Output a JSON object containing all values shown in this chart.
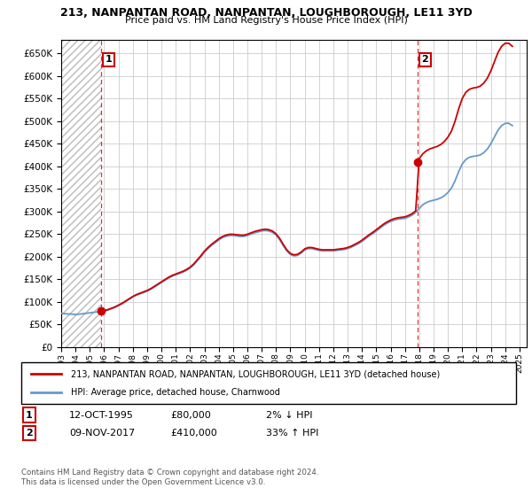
{
  "title": "213, NANPANTAN ROAD, NANPANTAN, LOUGHBOROUGH, LE11 3YD",
  "subtitle": "Price paid vs. HM Land Registry's House Price Index (HPI)",
  "ylabel_ticks": [
    0,
    50000,
    100000,
    150000,
    200000,
    250000,
    300000,
    350000,
    400000,
    450000,
    500000,
    550000,
    600000,
    650000
  ],
  "ylim": [
    0,
    680000
  ],
  "xlim_start": 1993.0,
  "xlim_end": 2025.5,
  "sale1_date": 1995.78,
  "sale1_price": 80000,
  "sale2_date": 2017.86,
  "sale2_price": 410000,
  "legend_label1": "213, NANPANTAN ROAD, NANPANTAN, LOUGHBOROUGH, LE11 3YD (detached house)",
  "legend_label2": "HPI: Average price, detached house, Charnwood",
  "note1_date": "12-OCT-1995",
  "note1_price": "£80,000",
  "note1_hpi": "2% ↓ HPI",
  "note2_date": "09-NOV-2017",
  "note2_price": "£410,000",
  "note2_hpi": "33% ↑ HPI",
  "copyright": "Contains HM Land Registry data © Crown copyright and database right 2024.\nThis data is licensed under the Open Government Licence v3.0.",
  "red_color": "#cc0000",
  "blue_color": "#6699cc",
  "grid_color": "#cccccc",
  "bg_color": "#ffffff",
  "hpi_data_years": [
    1993.0,
    1993.25,
    1993.5,
    1993.75,
    1994.0,
    1994.25,
    1994.5,
    1994.75,
    1995.0,
    1995.25,
    1995.5,
    1995.75,
    1996.0,
    1996.25,
    1996.5,
    1996.75,
    1997.0,
    1997.25,
    1997.5,
    1997.75,
    1998.0,
    1998.25,
    1998.5,
    1998.75,
    1999.0,
    1999.25,
    1999.5,
    1999.75,
    2000.0,
    2000.25,
    2000.5,
    2000.75,
    2001.0,
    2001.25,
    2001.5,
    2001.75,
    2002.0,
    2002.25,
    2002.5,
    2002.75,
    2003.0,
    2003.25,
    2003.5,
    2003.75,
    2004.0,
    2004.25,
    2004.5,
    2004.75,
    2005.0,
    2005.25,
    2005.5,
    2005.75,
    2006.0,
    2006.25,
    2006.5,
    2006.75,
    2007.0,
    2007.25,
    2007.5,
    2007.75,
    2008.0,
    2008.25,
    2008.5,
    2008.75,
    2009.0,
    2009.25,
    2009.5,
    2009.75,
    2010.0,
    2010.25,
    2010.5,
    2010.75,
    2011.0,
    2011.25,
    2011.5,
    2011.75,
    2012.0,
    2012.25,
    2012.5,
    2012.75,
    2013.0,
    2013.25,
    2013.5,
    2013.75,
    2014.0,
    2014.25,
    2014.5,
    2014.75,
    2015.0,
    2015.25,
    2015.5,
    2015.75,
    2016.0,
    2016.25,
    2016.5,
    2016.75,
    2017.0,
    2017.25,
    2017.5,
    2017.75,
    2018.0,
    2018.25,
    2018.5,
    2018.75,
    2019.0,
    2019.25,
    2019.5,
    2019.75,
    2020.0,
    2020.25,
    2020.5,
    2020.75,
    2021.0,
    2021.25,
    2021.5,
    2021.75,
    2022.0,
    2022.25,
    2022.5,
    2022.75,
    2023.0,
    2023.25,
    2023.5,
    2023.75,
    2024.0,
    2024.25,
    2024.5
  ],
  "hpi_values": [
    75000,
    74000,
    73500,
    73000,
    72500,
    73000,
    74000,
    75000,
    76000,
    77000,
    78000,
    79000,
    80000,
    82000,
    85000,
    88000,
    92000,
    96000,
    101000,
    106000,
    111000,
    115000,
    118000,
    121000,
    124000,
    128000,
    133000,
    138000,
    143000,
    148000,
    153000,
    157000,
    160000,
    163000,
    166000,
    170000,
    175000,
    182000,
    191000,
    200000,
    210000,
    218000,
    225000,
    231000,
    237000,
    242000,
    245000,
    247000,
    247000,
    246000,
    245000,
    245000,
    247000,
    250000,
    253000,
    255000,
    257000,
    258000,
    257000,
    254000,
    248000,
    238000,
    225000,
    213000,
    205000,
    202000,
    203000,
    208000,
    215000,
    218000,
    218000,
    216000,
    214000,
    213000,
    213000,
    213000,
    213000,
    214000,
    215000,
    216000,
    218000,
    221000,
    225000,
    229000,
    234000,
    240000,
    246000,
    251000,
    257000,
    263000,
    269000,
    274000,
    278000,
    281000,
    283000,
    284000,
    285000,
    288000,
    292000,
    298000,
    307000,
    315000,
    320000,
    323000,
    325000,
    327000,
    330000,
    335000,
    342000,
    352000,
    368000,
    388000,
    405000,
    415000,
    420000,
    422000,
    423000,
    425000,
    430000,
    438000,
    450000,
    465000,
    480000,
    490000,
    495000,
    495000,
    490000
  ]
}
